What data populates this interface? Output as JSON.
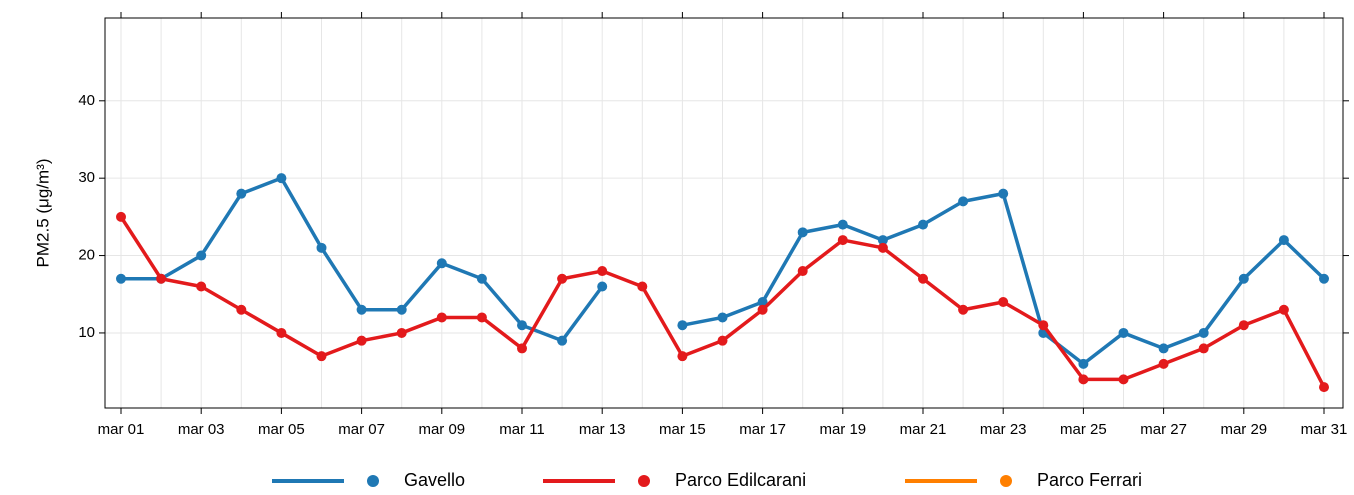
{
  "chart_data": {
    "type": "line",
    "y_label": "PM2.5 (μg/m³)",
    "categories": [
      "mar 01",
      null,
      "mar 03",
      null,
      "mar 05",
      null,
      "mar 07",
      null,
      "mar 09",
      null,
      "mar 11",
      null,
      "mar 13",
      null,
      "mar 15",
      null,
      "mar 17",
      null,
      "mar 19",
      null,
      "mar 21",
      null,
      "mar 23",
      null,
      "mar 25",
      null,
      "mar 27",
      null,
      "mar 29",
      null,
      "mar 31"
    ],
    "series": [
      {
        "name": "Gavello",
        "color": "#1f78b4",
        "values": [
          17,
          17,
          20,
          28,
          30,
          21,
          13,
          13,
          19,
          17,
          11,
          9,
          16,
          null,
          11,
          12,
          14,
          23,
          24,
          22,
          24,
          27,
          28,
          10,
          6,
          10,
          8,
          10,
          17,
          22,
          17
        ]
      },
      {
        "name": "Parco Edilcarani",
        "color": "#e31a1c",
        "values": [
          25,
          17,
          16,
          13,
          10,
          7,
          9,
          10,
          12,
          12,
          8,
          17,
          18,
          16,
          7,
          9,
          13,
          18,
          22,
          21,
          17,
          13,
          14,
          11,
          4,
          4,
          6,
          8,
          11,
          13,
          3
        ]
      },
      {
        "name": "Parco Ferrari",
        "color": "#ff7f00",
        "values": [
          null,
          null,
          null,
          null,
          null,
          null,
          null,
          null,
          null,
          null,
          null,
          null,
          null,
          null,
          null,
          null,
          null,
          null,
          null,
          null,
          null,
          null,
          null,
          null,
          null,
          null,
          null,
          null,
          null,
          null,
          null
        ]
      }
    ],
    "ylim": [
      0.3,
      50.7
    ],
    "yticks": [
      10,
      20,
      30,
      40
    ],
    "grid": true,
    "legend": "bottom"
  }
}
